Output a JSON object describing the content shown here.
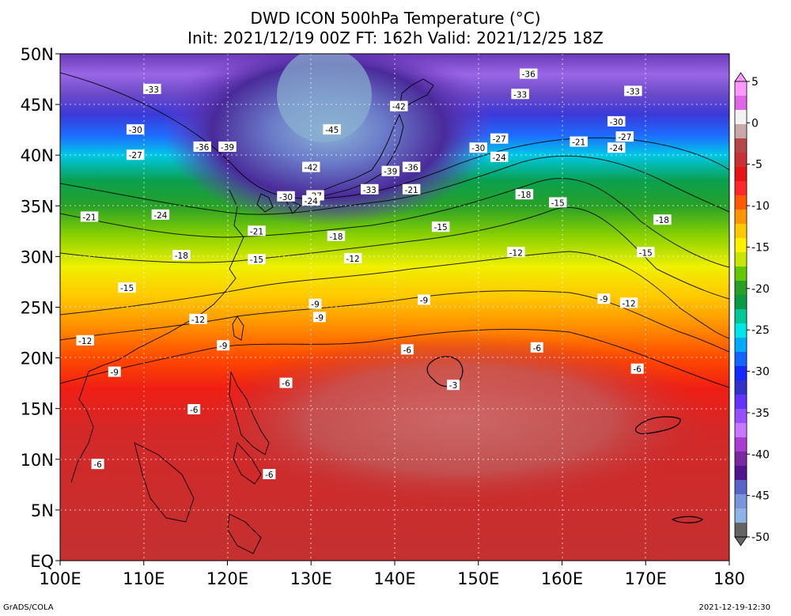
{
  "header": {
    "title_line1": "DWD ICON 500hPa Temperature (°C)",
    "title_line2": "Init: 2021/12/19 00Z  FT: 162h  Valid: 2021/12/25 18Z"
  },
  "footer": {
    "left": "GrADS/COLA",
    "right": "2021-12-19-12:30"
  },
  "map": {
    "lon_range": [
      100,
      180
    ],
    "lat_range": [
      0,
      50
    ],
    "lat_ticks": [
      "50N",
      "45N",
      "40N",
      "35N",
      "30N",
      "25N",
      "20N",
      "15N",
      "10N",
      "5N",
      "EQ"
    ],
    "lon_ticks": [
      "100E",
      "110E",
      "120E",
      "130E",
      "140E",
      "150E",
      "160E",
      "170E",
      "180"
    ],
    "contour_labels": [
      {
        "t": "-33",
        "lon": 111.0,
        "lat": 46.5
      },
      {
        "t": "-30",
        "lon": 109.0,
        "lat": 42.5
      },
      {
        "t": "-27",
        "lon": 109.0,
        "lat": 40.0
      },
      {
        "t": "-36",
        "lon": 117.0,
        "lat": 40.8
      },
      {
        "t": "-39",
        "lon": 120.0,
        "lat": 40.8
      },
      {
        "t": "-45",
        "lon": 132.5,
        "lat": 42.5
      },
      {
        "t": "-42",
        "lon": 140.5,
        "lat": 44.8
      },
      {
        "t": "-42",
        "lon": 130.0,
        "lat": 38.8
      },
      {
        "t": "-39",
        "lon": 139.5,
        "lat": 38.4
      },
      {
        "t": "-36",
        "lon": 142.0,
        "lat": 38.8
      },
      {
        "t": "-36",
        "lon": 156.0,
        "lat": 48.0
      },
      {
        "t": "-33",
        "lon": 155.0,
        "lat": 46.0
      },
      {
        "t": "-33",
        "lon": 168.5,
        "lat": 46.3
      },
      {
        "t": "-30",
        "lon": 166.5,
        "lat": 43.3
      },
      {
        "t": "-27",
        "lon": 167.5,
        "lat": 41.8
      },
      {
        "t": "-30",
        "lon": 150.0,
        "lat": 40.7
      },
      {
        "t": "-27",
        "lon": 152.5,
        "lat": 41.6
      },
      {
        "t": "-24",
        "lon": 152.5,
        "lat": 39.8
      },
      {
        "t": "-21",
        "lon": 162.0,
        "lat": 41.3
      },
      {
        "t": "-24",
        "lon": 166.5,
        "lat": 40.7
      },
      {
        "t": "-30",
        "lon": 127.0,
        "lat": 35.9
      },
      {
        "t": "-27",
        "lon": 130.5,
        "lat": 36.0
      },
      {
        "t": "-24",
        "lon": 130.0,
        "lat": 35.5
      },
      {
        "t": "-33",
        "lon": 137.0,
        "lat": 36.6
      },
      {
        "t": "-21",
        "lon": 142.0,
        "lat": 36.6
      },
      {
        "t": "-18",
        "lon": 155.5,
        "lat": 36.1
      },
      {
        "t": "-15",
        "lon": 159.5,
        "lat": 35.3
      },
      {
        "t": "-18",
        "lon": 172.0,
        "lat": 33.6
      },
      {
        "t": "-15",
        "lon": 170.0,
        "lat": 30.4
      },
      {
        "t": "-21",
        "lon": 103.5,
        "lat": 33.9
      },
      {
        "t": "-24",
        "lon": 112.0,
        "lat": 34.1
      },
      {
        "t": "-21",
        "lon": 123.5,
        "lat": 32.5
      },
      {
        "t": "-18",
        "lon": 133.0,
        "lat": 32.0
      },
      {
        "t": "-15",
        "lon": 145.5,
        "lat": 32.9
      },
      {
        "t": "-18",
        "lon": 114.5,
        "lat": 30.1
      },
      {
        "t": "-15",
        "lon": 123.5,
        "lat": 29.7
      },
      {
        "t": "-12",
        "lon": 135.0,
        "lat": 29.8
      },
      {
        "t": "-12",
        "lon": 154.5,
        "lat": 30.4
      },
      {
        "t": "-15",
        "lon": 108.0,
        "lat": 26.9
      },
      {
        "t": "-12",
        "lon": 116.5,
        "lat": 23.8
      },
      {
        "t": "-12",
        "lon": 103.0,
        "lat": 21.7
      },
      {
        "t": "-9",
        "lon": 130.5,
        "lat": 25.3
      },
      {
        "t": "-9",
        "lon": 131.0,
        "lat": 24.0
      },
      {
        "t": "-9",
        "lon": 143.5,
        "lat": 25.7
      },
      {
        "t": "-9",
        "lon": 165.0,
        "lat": 25.8
      },
      {
        "t": "-12",
        "lon": 168.0,
        "lat": 25.4
      },
      {
        "t": "-9",
        "lon": 119.5,
        "lat": 21.2
      },
      {
        "t": "-6",
        "lon": 141.5,
        "lat": 20.8
      },
      {
        "t": "-6",
        "lon": 157.0,
        "lat": 21.0
      },
      {
        "t": "-9",
        "lon": 106.5,
        "lat": 18.6
      },
      {
        "t": "-6",
        "lon": 127.0,
        "lat": 17.5
      },
      {
        "t": "-3",
        "lon": 147.0,
        "lat": 17.3
      },
      {
        "t": "-6",
        "lon": 169.0,
        "lat": 18.9
      },
      {
        "t": "-6",
        "lon": 116.0,
        "lat": 14.9
      },
      {
        "t": "-6",
        "lon": 104.5,
        "lat": 9.5
      },
      {
        "t": "-6",
        "lon": 125.0,
        "lat": 8.5
      }
    ]
  },
  "colorbar": {
    "labels": [
      "5",
      "0",
      "-5",
      "-10",
      "-15",
      "-20",
      "-25",
      "-30",
      "-35",
      "-40",
      "-45",
      "-50"
    ],
    "colors": [
      "#ff99ff",
      "#e066e8",
      "#f2f2f2",
      "#c8a8a8",
      "#b44848",
      "#c83232",
      "#e61414",
      "#ff2828",
      "#ff5a00",
      "#ff9600",
      "#ffc800",
      "#fff000",
      "#c8e600",
      "#64c800",
      "#28a028",
      "#0a9a46",
      "#00c896",
      "#00e6e6",
      "#00aaff",
      "#1464ff",
      "#1428ff",
      "#3232c8",
      "#6432ff",
      "#9650ff",
      "#c878ff",
      "#aa3cd2",
      "#7a28a0",
      "#50148c",
      "#5a64c8",
      "#7896dc",
      "#8cb4e6",
      "#646464"
    ]
  }
}
